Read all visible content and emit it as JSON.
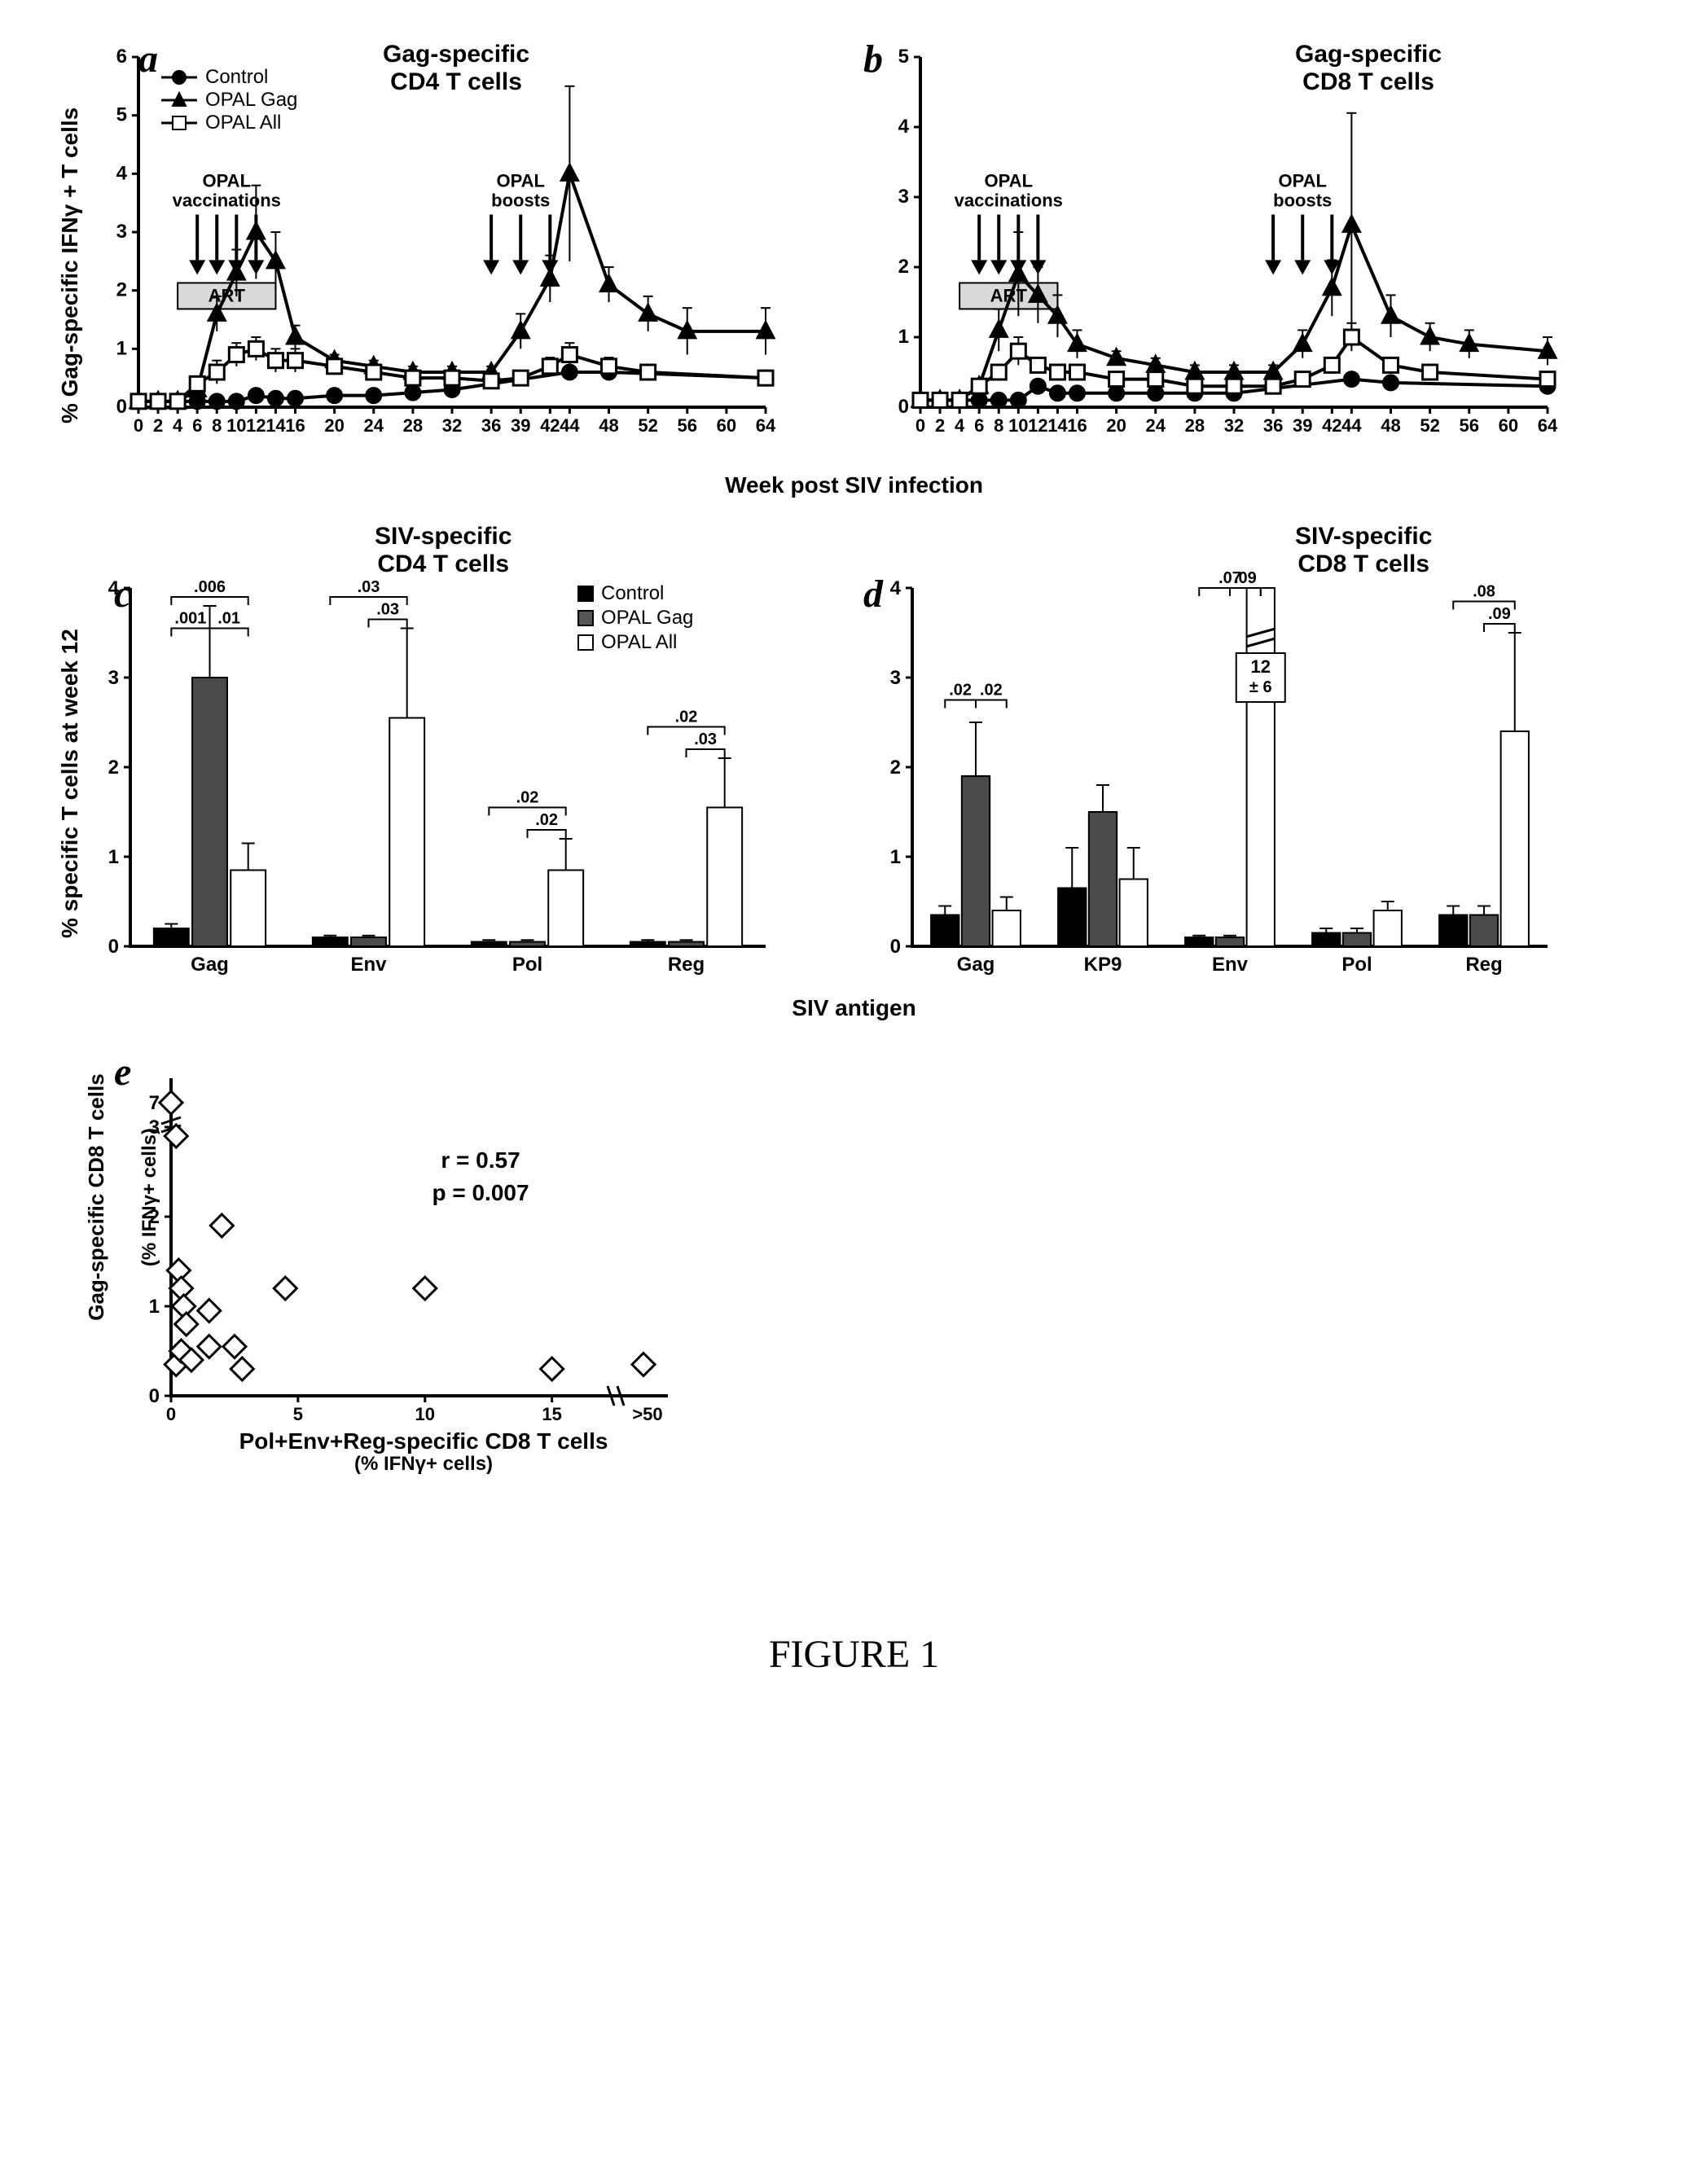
{
  "caption": "FIGURE 1",
  "panels": {
    "a": {
      "label": "a",
      "title": "Gag-specific\nCD4 T cells",
      "type": "line",
      "ylabel": "% Gag-specific IFNγ + T cells",
      "ylim": [
        0,
        6
      ],
      "ytick_step": 1,
      "xticks": [
        0,
        2,
        4,
        6,
        8,
        10,
        12,
        14,
        16,
        20,
        24,
        28,
        32,
        36,
        39,
        42,
        44,
        48,
        52,
        56,
        60,
        64
      ],
      "legend": [
        {
          "label": "Control",
          "marker": "circle-filled",
          "line": "solid",
          "color": "#000000"
        },
        {
          "label": "OPAL Gag",
          "marker": "triangle-filled",
          "line": "solid",
          "color": "#000000"
        },
        {
          "label": "OPAL All",
          "marker": "square-open",
          "line": "solid",
          "color": "#000000"
        }
      ],
      "annotations": {
        "vaccinations_label": "OPAL\nvaccinations",
        "vaccinations_arrows_x": [
          6,
          8,
          10,
          12
        ],
        "boosts_label": "OPAL\nboosts",
        "boosts_arrows_x": [
          36,
          39,
          42
        ],
        "art_label": "ART",
        "art_x_range": [
          4,
          14
        ]
      },
      "series": {
        "control": {
          "x": [
            0,
            2,
            4,
            6,
            8,
            10,
            12,
            14,
            16,
            20,
            24,
            28,
            32,
            44,
            48,
            64
          ],
          "y": [
            0.1,
            0.1,
            0.1,
            0.1,
            0.1,
            0.1,
            0.2,
            0.15,
            0.15,
            0.2,
            0.2,
            0.25,
            0.3,
            0.6,
            0.6,
            0.5
          ],
          "err": [
            0,
            0,
            0,
            0,
            0,
            0,
            0,
            0,
            0,
            0,
            0,
            0,
            0,
            0.1,
            0,
            0.1
          ]
        },
        "opal_gag": {
          "x": [
            0,
            2,
            4,
            6,
            8,
            10,
            12,
            14,
            16,
            20,
            24,
            28,
            32,
            36,
            39,
            42,
            44,
            48,
            52,
            56,
            64
          ],
          "y": [
            0.1,
            0.1,
            0.1,
            0.3,
            1.6,
            2.3,
            3.0,
            2.5,
            1.2,
            0.8,
            0.7,
            0.6,
            0.6,
            0.6,
            1.3,
            2.2,
            4.0,
            2.1,
            1.6,
            1.3,
            1.3
          ],
          "err": [
            0,
            0,
            0,
            0.1,
            0.3,
            0.4,
            0.8,
            0.5,
            0.2,
            0.1,
            0.1,
            0.1,
            0.1,
            0.1,
            0.3,
            0.4,
            1.5,
            0.3,
            0.3,
            0.4,
            0.4
          ]
        },
        "opal_all": {
          "x": [
            0,
            2,
            4,
            6,
            8,
            10,
            12,
            14,
            16,
            20,
            24,
            28,
            32,
            36,
            39,
            42,
            44,
            48,
            52,
            64
          ],
          "y": [
            0.1,
            0.1,
            0.1,
            0.4,
            0.6,
            0.9,
            1.0,
            0.8,
            0.8,
            0.7,
            0.6,
            0.5,
            0.5,
            0.45,
            0.5,
            0.7,
            0.9,
            0.7,
            0.6,
            0.5
          ],
          "err": [
            0,
            0,
            0,
            0.1,
            0.2,
            0.2,
            0.2,
            0.2,
            0.2,
            0.1,
            0.1,
            0.1,
            0.1,
            0.1,
            0.1,
            0.15,
            0.2,
            0.15,
            0.1,
            0.1
          ]
        }
      }
    },
    "b": {
      "label": "b",
      "title": "Gag-specific\nCD8 T cells",
      "type": "line",
      "ylim": [
        0,
        5
      ],
      "ytick_step": 1,
      "xticks": [
        0,
        2,
        4,
        6,
        8,
        10,
        12,
        14,
        16,
        20,
        24,
        28,
        32,
        36,
        39,
        42,
        44,
        48,
        52,
        56,
        60,
        64
      ],
      "annotations": {
        "vaccinations_label": "OPAL\nvaccinations",
        "vaccinations_arrows_x": [
          6,
          8,
          10,
          12
        ],
        "boosts_label": "OPAL\nboosts",
        "boosts_arrows_x": [
          36,
          39,
          42
        ],
        "art_label": "ART",
        "art_x_range": [
          4,
          14
        ]
      },
      "series": {
        "control": {
          "x": [
            0,
            2,
            4,
            6,
            8,
            10,
            12,
            14,
            16,
            20,
            24,
            28,
            32,
            44,
            48,
            64
          ],
          "y": [
            0.1,
            0.1,
            0.1,
            0.1,
            0.1,
            0.1,
            0.3,
            0.2,
            0.2,
            0.2,
            0.2,
            0.2,
            0.2,
            0.4,
            0.35,
            0.3
          ],
          "err": [
            0,
            0,
            0,
            0,
            0,
            0,
            0,
            0,
            0,
            0,
            0,
            0,
            0,
            0,
            0,
            0
          ]
        },
        "opal_gag": {
          "x": [
            0,
            2,
            4,
            6,
            8,
            10,
            12,
            14,
            16,
            20,
            24,
            28,
            32,
            36,
            39,
            42,
            44,
            48,
            52,
            56,
            64
          ],
          "y": [
            0.1,
            0.1,
            0.1,
            0.3,
            1.1,
            1.9,
            1.6,
            1.3,
            0.9,
            0.7,
            0.6,
            0.5,
            0.5,
            0.5,
            0.9,
            1.7,
            2.6,
            1.3,
            1.0,
            0.9,
            0.8
          ],
          "err": [
            0,
            0,
            0,
            0.1,
            0.3,
            0.6,
            0.4,
            0.3,
            0.2,
            0.1,
            0.1,
            0.1,
            0.1,
            0.1,
            0.2,
            0.4,
            1.6,
            0.3,
            0.2,
            0.2,
            0.2
          ]
        },
        "opal_all": {
          "x": [
            0,
            2,
            4,
            6,
            8,
            10,
            12,
            14,
            16,
            20,
            24,
            28,
            32,
            36,
            39,
            42,
            44,
            48,
            52,
            64
          ],
          "y": [
            0.1,
            0.1,
            0.1,
            0.3,
            0.5,
            0.8,
            0.6,
            0.5,
            0.5,
            0.4,
            0.4,
            0.3,
            0.3,
            0.3,
            0.4,
            0.6,
            1.0,
            0.6,
            0.5,
            0.4
          ],
          "err": [
            0,
            0,
            0,
            0.1,
            0.1,
            0.2,
            0.1,
            0.1,
            0.1,
            0.1,
            0.1,
            0.1,
            0.1,
            0.1,
            0.1,
            0.1,
            0.2,
            0.1,
            0.1,
            0.1
          ]
        }
      }
    },
    "c": {
      "label": "c",
      "title": "SIV-specific\nCD4 T cells",
      "type": "bar",
      "ylabel": "% specific T cells at week 12",
      "ylim": [
        0,
        4
      ],
      "ytick_step": 1,
      "categories": [
        "Gag",
        "Env",
        "Pol",
        "Reg"
      ],
      "legend": [
        {
          "label": "Control",
          "fill": "#000000"
        },
        {
          "label": "OPAL Gag",
          "fill": "#555555"
        },
        {
          "label": "OPAL All",
          "fill": "#ffffff"
        }
      ],
      "groups": {
        "Gag": {
          "control": 0.2,
          "gag": 3.0,
          "all": 0.85,
          "err": [
            0.05,
            0.8,
            0.3
          ]
        },
        "Env": {
          "control": 0.1,
          "gag": 0.1,
          "all": 2.55,
          "err": [
            0.02,
            0.02,
            1.0
          ]
        },
        "Pol": {
          "control": 0.05,
          "gag": 0.05,
          "all": 0.85,
          "err": [
            0.02,
            0.02,
            0.35
          ]
        },
        "Reg": {
          "control": 0.05,
          "gag": 0.05,
          "all": 1.55,
          "err": [
            0.02,
            0.02,
            0.55
          ]
        }
      },
      "pvalues": [
        {
          "label": ".006",
          "which": "Gag",
          "pair": "control-all",
          "y": 3.9
        },
        {
          "label": ".001",
          "which": "Gag",
          "pair": "control-gag",
          "y": 3.55
        },
        {
          "label": ".01",
          "which": "Gag",
          "pair": "gag-all",
          "y": 3.55
        },
        {
          "label": ".03",
          "which": "Env",
          "pair": "control-all",
          "y": 3.9
        },
        {
          "label": ".03",
          "which": "Env",
          "pair": "gag-all",
          "y": 3.65
        },
        {
          "label": ".02",
          "which": "Pol",
          "pair": "control-all",
          "y": 1.55
        },
        {
          "label": ".02",
          "which": "Pol",
          "pair": "gag-all",
          "y": 1.3
        },
        {
          "label": ".02",
          "which": "Reg",
          "pair": "control-all",
          "y": 2.45
        },
        {
          "label": ".03",
          "which": "Reg",
          "pair": "gag-all",
          "y": 2.2
        }
      ]
    },
    "d": {
      "label": "d",
      "title": "SIV-specific\nCD8 T cells",
      "type": "bar",
      "ylim": [
        0,
        4
      ],
      "ytick_step": 1,
      "categories": [
        "Gag",
        "KP9",
        "Env",
        "Pol",
        "Reg"
      ],
      "groups": {
        "Gag": {
          "control": 0.35,
          "gag": 1.9,
          "all": 0.4,
          "err": [
            0.1,
            0.6,
            0.15
          ]
        },
        "KP9": {
          "control": 0.65,
          "gag": 1.5,
          "all": 0.75,
          "err": [
            0.45,
            0.3,
            0.35
          ]
        },
        "Env": {
          "control": 0.1,
          "gag": 0.1,
          "all": 4.0,
          "err": [
            0.02,
            0.02,
            0
          ]
        },
        "Pol": {
          "control": 0.15,
          "gag": 0.15,
          "all": 0.4,
          "err": [
            0.05,
            0.05,
            0.1
          ]
        },
        "Reg": {
          "control": 0.35,
          "gag": 0.35,
          "all": 2.4,
          "err": [
            0.1,
            0.1,
            1.1
          ]
        }
      },
      "env_break_label": "12\n± 6",
      "pvalues": [
        {
          "label": ".02",
          "which": "Gag",
          "pair": "control-gag",
          "y": 2.75
        },
        {
          "label": ".02",
          "which": "Gag",
          "pair": "gag-all",
          "y": 2.75
        },
        {
          "label": ".07",
          "which": "Env",
          "pair": "control-all",
          "y": 4.5
        },
        {
          "label": ".09",
          "which": "Env",
          "pair": "gag-all",
          "y": 4.2
        },
        {
          "label": ".08",
          "which": "Reg",
          "pair": "control-all",
          "y": 3.85
        },
        {
          "label": ".09",
          "which": "Reg",
          "pair": "gag-all",
          "y": 3.6
        }
      ]
    },
    "e": {
      "label": "e",
      "type": "scatter",
      "ylabel": "Gag-specific CD8 T cells\n(% IFNγ+ cells)",
      "xlabel": "Pol+Env+Reg-specific CD8 T cells",
      "xsublabel": "(% IFNγ+ cells)",
      "ylim": [
        0,
        3
      ],
      "ytick_step": 1,
      "ybreak_at": 3,
      "ybreak_label": "7",
      "xticks": [
        0,
        5,
        10,
        15
      ],
      "xbreak_label": ">50",
      "stats": {
        "r": "r = 0.57",
        "p": "p = 0.007"
      },
      "points": [
        [
          0,
          7
        ],
        [
          0.2,
          2.9
        ],
        [
          0.3,
          1.4
        ],
        [
          0.4,
          1.2
        ],
        [
          0.5,
          1.0
        ],
        [
          0.6,
          0.8
        ],
        [
          0.2,
          0.35
        ],
        [
          0.4,
          0.5
        ],
        [
          0.8,
          0.4
        ],
        [
          1.5,
          0.55
        ],
        [
          1.5,
          0.95
        ],
        [
          2,
          1.9
        ],
        [
          2.5,
          0.55
        ],
        [
          2.8,
          0.3
        ],
        [
          4.5,
          1.2
        ],
        [
          10,
          1.2
        ],
        [
          15,
          0.3
        ],
        [
          55,
          0.35
        ]
      ]
    }
  },
  "shared_xaxis_ab": "Week post SIV infection",
  "shared_xaxis_cd": "SIV antigen",
  "colors": {
    "axis": "#000000",
    "control_fill": "#000000",
    "gag_fill": "#4a4a4a",
    "all_fill": "#ffffff",
    "background": "#ffffff"
  }
}
